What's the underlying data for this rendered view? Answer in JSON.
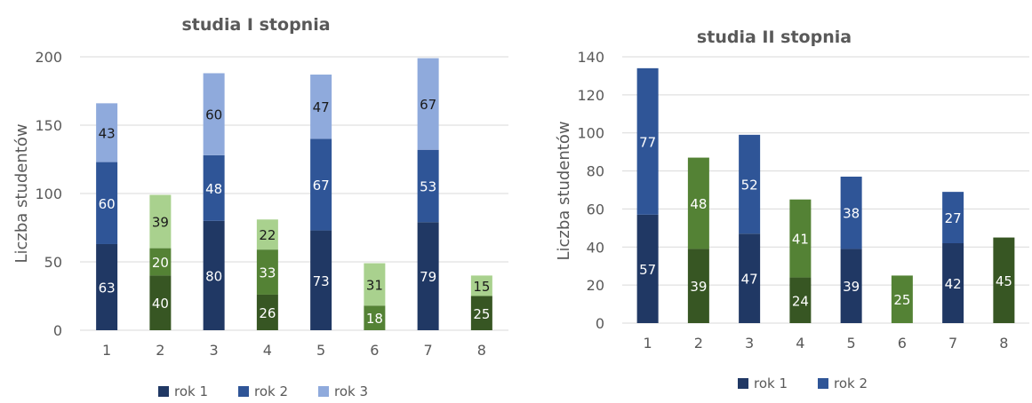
{
  "chart_data": [
    {
      "type": "bar",
      "stacked": true,
      "title": "studia I stopnia",
      "ylabel": "Liczba studentów",
      "xlabel": "",
      "ylim": [
        0,
        200
      ],
      "yticks": [
        0,
        50,
        100,
        150,
        200
      ],
      "grid": true,
      "legend_position": "bottom",
      "categories": [
        "1",
        "2",
        "3",
        "4",
        "5",
        "6",
        "7",
        "8"
      ],
      "series": [
        {
          "name": "rok 1",
          "values": [
            63,
            40,
            80,
            26,
            73,
            18,
            79,
            25
          ]
        },
        {
          "name": "rok 2",
          "values": [
            60,
            20,
            48,
            33,
            67,
            31,
            53,
            15
          ]
        },
        {
          "name": "rok 3",
          "values": [
            43,
            39,
            60,
            22,
            47,
            null,
            67,
            null
          ]
        }
      ],
      "legend_colors": [
        "#203864",
        "#2f5597",
        "#8faadc"
      ],
      "bar_colors": [
        [
          "#203864",
          "#2f5597",
          "#8faadc"
        ],
        [
          "#375623",
          "#548235",
          "#a9d18e"
        ],
        [
          "#203864",
          "#2f5597",
          "#8faadc"
        ],
        [
          "#375623",
          "#548235",
          "#a9d18e"
        ],
        [
          "#203864",
          "#2f5597",
          "#8faadc"
        ],
        [
          "#548235",
          "#a9d18e"
        ],
        [
          "#203864",
          "#2f5597",
          "#8faadc"
        ],
        [
          "#375623",
          "#a9d18e"
        ]
      ]
    },
    {
      "type": "bar",
      "stacked": true,
      "title": "studia II stopnia",
      "ylabel": "Liczba studentów",
      "xlabel": "",
      "ylim": [
        0,
        140
      ],
      "yticks": [
        0,
        20,
        40,
        60,
        80,
        100,
        120,
        140
      ],
      "grid": true,
      "legend_position": "bottom",
      "categories": [
        "1",
        "2",
        "3",
        "4",
        "5",
        "6",
        "7",
        "8"
      ],
      "series": [
        {
          "name": "rok 1",
          "values": [
            57,
            39,
            47,
            24,
            39,
            25,
            42,
            45
          ]
        },
        {
          "name": "rok 2",
          "values": [
            77,
            48,
            52,
            41,
            38,
            null,
            27,
            null
          ]
        }
      ],
      "legend_colors": [
        "#203864",
        "#2f5597"
      ],
      "bar_colors": [
        [
          "#203864",
          "#2f5597"
        ],
        [
          "#375623",
          "#548235"
        ],
        [
          "#203864",
          "#2f5597"
        ],
        [
          "#375623",
          "#548235"
        ],
        [
          "#203864",
          "#2f5597"
        ],
        [
          "#548235"
        ],
        [
          "#203864",
          "#2f5597"
        ],
        [
          "#375623"
        ]
      ]
    }
  ]
}
